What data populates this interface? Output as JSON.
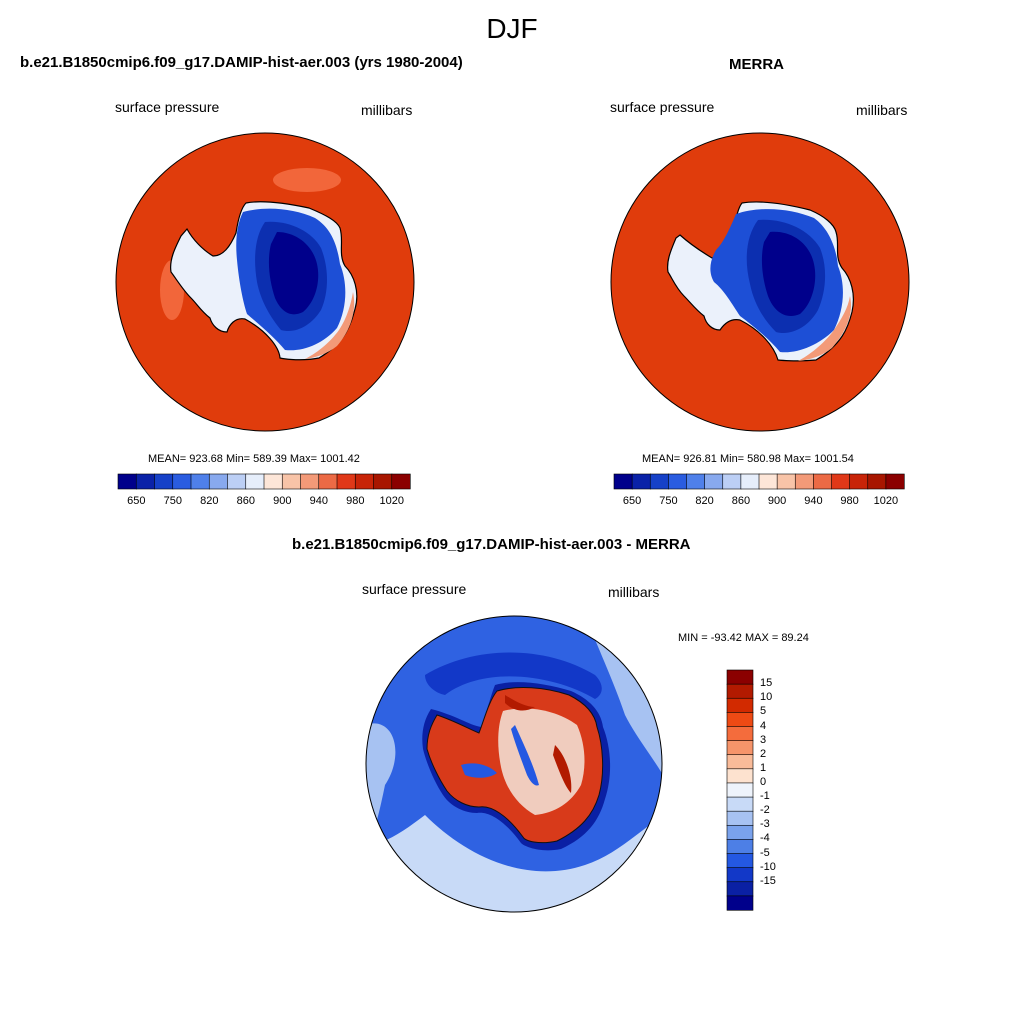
{
  "figure": {
    "title": "DJF"
  },
  "panels": [
    {
      "title": "b.e21.B1850cmip6.f09_g17.DAMIP-hist-aer.003 (yrs 1980-2004)",
      "left_label": "surface pressure",
      "right_label": "millibars",
      "stats": "MEAN= 923.68  Min= 589.39  Max= 1001.42"
    },
    {
      "title": "MERRA",
      "left_label": "surface pressure",
      "right_label": "millibars",
      "stats": "MEAN= 926.81  Min= 580.98  Max= 1001.54"
    },
    {
      "title": "b.e21.B1850cmip6.f09_g17.DAMIP-hist-aer.003 - MERRA",
      "left_label": "surface pressure",
      "right_label": "millibars",
      "stats": "MIN = -93.42 MAX =  89.24"
    }
  ],
  "colorbar_horizontal": {
    "colors": [
      "#00008b",
      "#0a22a8",
      "#1641c8",
      "#2a5ce0",
      "#4f80ea",
      "#88a9ee",
      "#bccff5",
      "#e6eefb",
      "#fde6d8",
      "#f8c4a8",
      "#f39a78",
      "#ec6a45",
      "#e03818",
      "#c82408",
      "#a81600",
      "#8b0000"
    ],
    "tick_labels": [
      "650",
      "750",
      "820",
      "860",
      "900",
      "940",
      "980",
      "1020"
    ]
  },
  "colorbar_vertical": {
    "colors": [
      "#8b0000",
      "#b21a00",
      "#d22a00",
      "#ee4a14",
      "#f46c3c",
      "#f6946a",
      "#f9bb99",
      "#fde2cf",
      "#eef3fb",
      "#c8daf7",
      "#a7c2f2",
      "#7aa2ec",
      "#4d7fe6",
      "#2458e2",
      "#1238c8",
      "#0a20a4",
      "#00008b"
    ],
    "tick_labels": [
      "15",
      "10",
      "5",
      "4",
      "3",
      "2",
      "1",
      "0",
      "-1",
      "-2",
      "-3",
      "-4",
      "-5",
      "-10",
      "-15"
    ]
  },
  "colors": {
    "ocean_abs": "#e03c0c",
    "ocean_anom": "#2f62e2"
  }
}
